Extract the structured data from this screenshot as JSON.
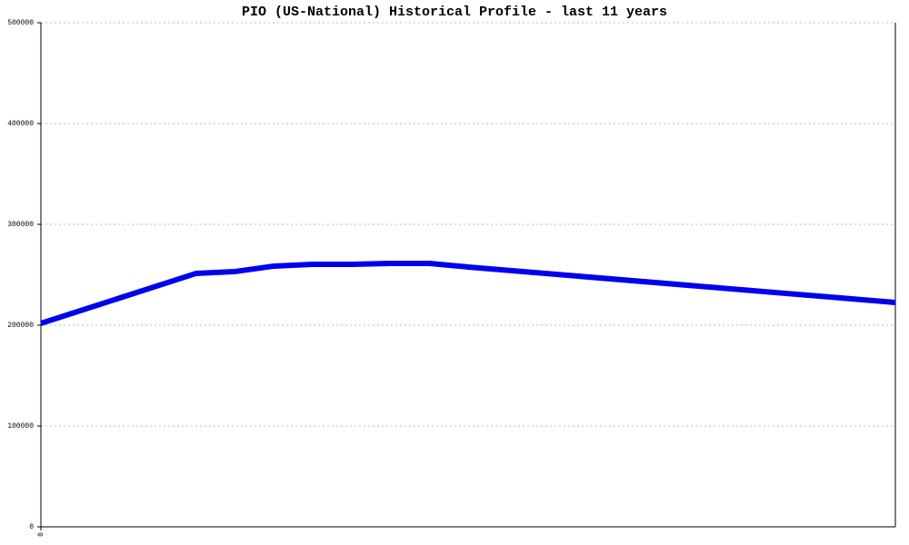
{
  "chart_data": {
    "type": "line",
    "title": "PIO (US-National) Historical Profile - last 11 years",
    "x": [
      0,
      4,
      5,
      6,
      7,
      8,
      9,
      10,
      11,
      22
    ],
    "values": [
      201800,
      251400,
      253200,
      258600,
      260400,
      260400,
      261300,
      261300,
      257700,
      222500
    ],
    "color": "#0000ee",
    "xlim": [
      0,
      22
    ],
    "xticks": [
      0
    ],
    "ylim": [
      0,
      500000
    ],
    "yticks": [
      0,
      100000,
      200000,
      300000,
      400000,
      500000
    ],
    "grid": true
  }
}
